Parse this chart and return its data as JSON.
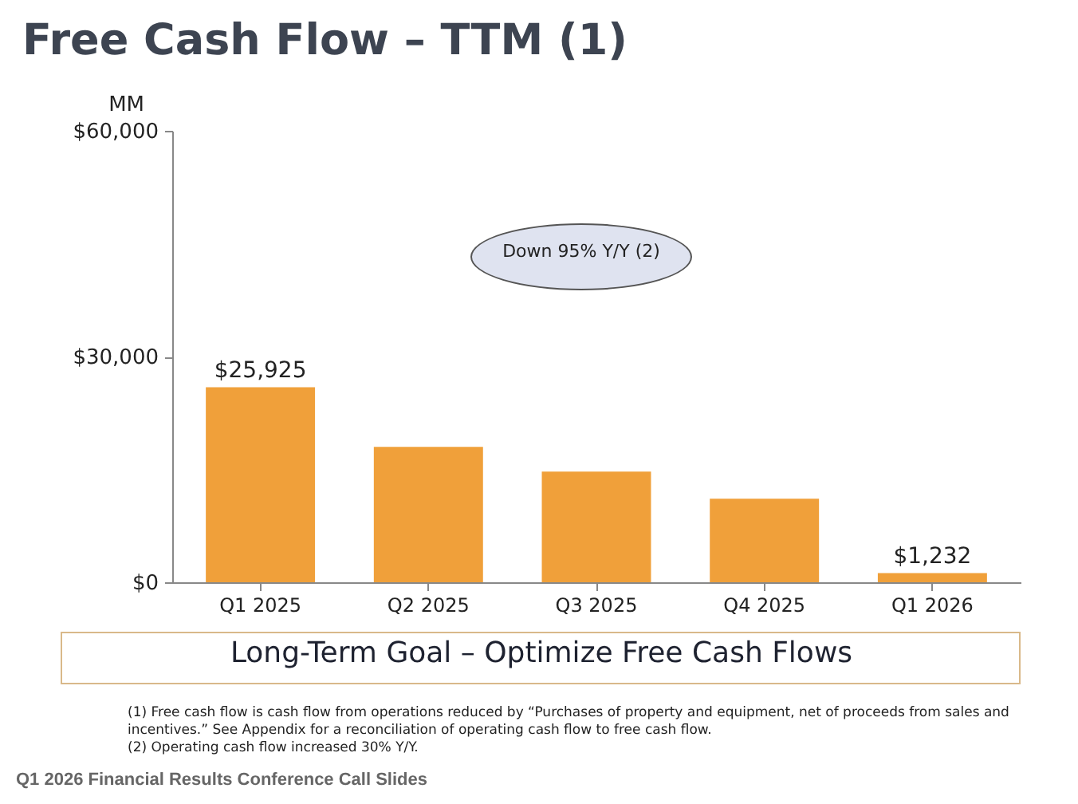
{
  "chart_data": {
    "type": "bar",
    "title": "Free Cash Flow – TTM (1)",
    "ylabel": "MM",
    "categories": [
      "Q1 2025",
      "Q2 2025",
      "Q3 2025",
      "Q4 2025",
      "Q1 2026"
    ],
    "values": [
      25925,
      18000,
      14700,
      11100,
      1232
    ],
    "value_labels": [
      "$25,925",
      null,
      null,
      null,
      "$1,232"
    ],
    "color": "#f0a03a",
    "ylim": [
      0,
      60000
    ],
    "yticks": [
      {
        "value": 0,
        "label": "$0"
      },
      {
        "value": 30000,
        "label": "$30,000"
      },
      {
        "value": 60000,
        "label": "$60,000"
      }
    ],
    "annotations": [
      "Down 95% Y/Y (2)",
      "Long-Term Goal – Optimize Free Cash Flows",
      "(1) Free cash flow is cash flow from operations reduced by “Purchases of property and equipment, net of proceeds from sales and incentives.” See Appendix for a reconciliation of operating cash flow to free cash flow.",
      "(2) Operating cash flow increased 30% Y/Y.",
      "Q1 2026 Financial Results Conference Call Slides"
    ]
  }
}
